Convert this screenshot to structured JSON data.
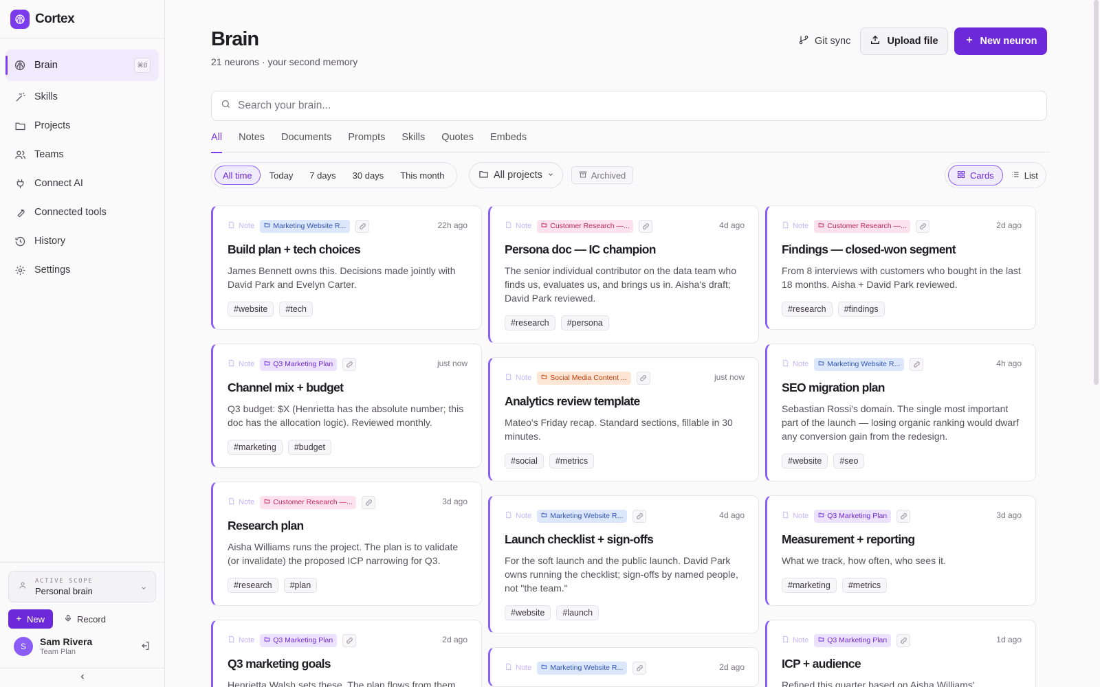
{
  "app": {
    "name": "Cortex"
  },
  "sidebar": {
    "items": [
      {
        "label": "Brain",
        "icon": "brain-icon",
        "shortcut": "⌘B",
        "active": true
      },
      {
        "label": "Skills",
        "icon": "wand-icon"
      },
      {
        "label": "Projects",
        "icon": "folder-icon"
      },
      {
        "label": "Teams",
        "icon": "users-icon"
      },
      {
        "label": "Connect AI",
        "icon": "plug-icon"
      },
      {
        "label": "Connected tools",
        "icon": "wrench-icon"
      },
      {
        "label": "History",
        "icon": "history-icon"
      },
      {
        "label": "Settings",
        "icon": "gear-icon"
      }
    ],
    "scope": {
      "label": "ACTIVE SCOPE",
      "value": "Personal brain"
    },
    "new_label": "New",
    "record_label": "Record",
    "user": {
      "initial": "S",
      "name": "Sam Rivera",
      "plan": "Team Plan"
    }
  },
  "header": {
    "title": "Brain",
    "subtitle": "21 neurons · your second memory",
    "git_sync": "Git sync",
    "upload": "Upload file",
    "new_neuron": "New neuron"
  },
  "search": {
    "placeholder": "Search your brain..."
  },
  "tabs": [
    "All",
    "Notes",
    "Documents",
    "Prompts",
    "Skills",
    "Quotes",
    "Embeds"
  ],
  "filters": {
    "time": [
      "All time",
      "Today",
      "7 days",
      "30 days",
      "This month"
    ],
    "projects": "All projects",
    "archived": "Archived",
    "views": [
      "Cards",
      "List"
    ]
  },
  "columns": [
    [
      {
        "type": "Note",
        "project": "Marketing Website R...",
        "project_color": "blue",
        "time": "22h ago",
        "title": "Build plan + tech choices",
        "body": "James Bennett owns this. Decisions made jointly with David Park and Evelyn Carter.",
        "tags": [
          "#website",
          "#tech"
        ]
      },
      {
        "type": "Note",
        "project": "Q3 Marketing Plan",
        "project_color": "purple",
        "time": "just now",
        "title": "Channel mix + budget",
        "body": "Q3 budget: $X (Henrietta has the absolute number; this doc has the allocation logic). Reviewed monthly.",
        "tags": [
          "#marketing",
          "#budget"
        ]
      },
      {
        "type": "Note",
        "project": "Customer Research —...",
        "project_color": "pink",
        "time": "3d ago",
        "title": "Research plan",
        "body": "Aisha Williams runs the project. The plan is to validate (or invalidate) the proposed ICP narrowing for Q3.",
        "tags": [
          "#research",
          "#plan"
        ]
      },
      {
        "type": "Note",
        "project": "Q3 Marketing Plan",
        "project_color": "purple",
        "time": "2d ago",
        "title": "Q3 marketing goals",
        "body": "Henrietta Walsh sets these. The plan flows from them.",
        "tags": []
      }
    ],
    [
      {
        "type": "Note",
        "project": "Customer Research —...",
        "project_color": "pink",
        "time": "4d ago",
        "title": "Persona doc — IC champion",
        "body": "The senior individual contributor on the data team who finds us, evaluates us, and brings us in. Aisha's draft; David Park reviewed.",
        "tags": [
          "#research",
          "#persona"
        ]
      },
      {
        "type": "Note",
        "project": "Social Media Content ...",
        "project_color": "orange",
        "time": "just now",
        "title": "Analytics review template",
        "body": "Mateo's Friday recap. Standard sections, fillable in 30 minutes.",
        "tags": [
          "#social",
          "#metrics"
        ]
      },
      {
        "type": "Note",
        "project": "Marketing Website R...",
        "project_color": "blue",
        "time": "4d ago",
        "title": "Launch checklist + sign-offs",
        "body": "For the soft launch and the public launch. David Park owns running the checklist; sign-offs by named people, not \"the team.\"",
        "tags": [
          "#website",
          "#launch"
        ]
      },
      {
        "type": "Note",
        "project": "Marketing Website R...",
        "project_color": "blue",
        "time": "2d ago",
        "title": "",
        "body": "",
        "tags": []
      }
    ],
    [
      {
        "type": "Note",
        "project": "Customer Research —...",
        "project_color": "pink",
        "time": "2d ago",
        "title": "Findings — closed-won segment",
        "body": "From 8 interviews with customers who bought in the last 18 months. Aisha + David Park reviewed.",
        "tags": [
          "#research",
          "#findings"
        ]
      },
      {
        "type": "Note",
        "project": "Marketing Website R...",
        "project_color": "blue",
        "time": "4h ago",
        "title": "SEO migration plan",
        "body": "Sebastian Rossi's domain. The single most important part of the launch — losing organic ranking would dwarf any conversion gain from the redesign.",
        "tags": [
          "#website",
          "#seo"
        ]
      },
      {
        "type": "Note",
        "project": "Q3 Marketing Plan",
        "project_color": "purple",
        "time": "3d ago",
        "title": "Measurement + reporting",
        "body": "What we track, how often, who sees it.",
        "tags": [
          "#marketing",
          "#metrics"
        ]
      },
      {
        "type": "Note",
        "project": "Q3 Marketing Plan",
        "project_color": "purple",
        "time": "1d ago",
        "title": "ICP + audience",
        "body": "Refined this quarter based on Aisha Williams'",
        "tags": []
      }
    ]
  ]
}
